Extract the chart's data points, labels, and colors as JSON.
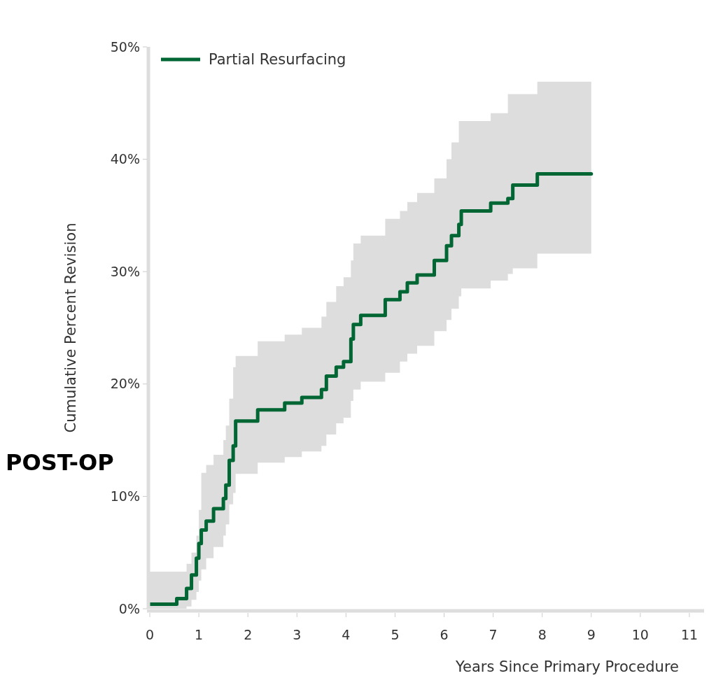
{
  "chart_data": {
    "type": "step",
    "xlabel": "Years Since Primary Procedure",
    "ylabel": "Cumulative Percent Revision",
    "xlim": [
      0,
      11.3
    ],
    "xticks": [
      0,
      1,
      2,
      3,
      4,
      5,
      6,
      7,
      8,
      9,
      10,
      11
    ],
    "ylim": [
      0,
      50
    ],
    "yticks": [
      {
        "value": 0,
        "label": "0%"
      },
      {
        "value": 10,
        "label": "10%"
      },
      {
        "value": 20,
        "label": "20%"
      },
      {
        "value": 30,
        "label": "30%"
      },
      {
        "value": 40,
        "label": "40%"
      },
      {
        "value": 50,
        "label": "50%"
      }
    ],
    "grid": false,
    "legend": "top left",
    "marker": "none",
    "line_style": "solid",
    "annotations": [
      "POST-OP"
    ],
    "series": [
      {
        "name": "Partial Resurfacing",
        "color": "#006633",
        "x": [
          0,
          0.55,
          0.75,
          0.85,
          0.95,
          1.0,
          1.05,
          1.15,
          1.3,
          1.5,
          1.55,
          1.62,
          1.7,
          1.75,
          2.2,
          2.75,
          3.1,
          3.5,
          3.6,
          3.8,
          3.95,
          4.1,
          4.15,
          4.3,
          4.8,
          5.1,
          5.25,
          5.45,
          5.8,
          6.05,
          6.15,
          6.3,
          6.35,
          6.95,
          7.3,
          7.4,
          7.9,
          9.0
        ],
        "values": [
          0.4,
          0.9,
          1.8,
          3,
          4.5,
          5.8,
          7,
          7.8,
          8.9,
          9.8,
          11,
          13.2,
          14.5,
          16.7,
          17.7,
          18.3,
          18.8,
          19.5,
          20.7,
          21.5,
          22,
          24,
          25.3,
          26.1,
          27.5,
          28.2,
          29,
          29.7,
          31,
          32.3,
          33.2,
          34.2,
          35.4,
          36.1,
          36.5,
          37.7,
          38.7,
          38.7
        ],
        "lower": [
          0,
          0,
          0.2,
          0.8,
          1.5,
          2.5,
          3.5,
          4.5,
          5.5,
          6.5,
          7.5,
          9.3,
          10.3,
          12,
          13,
          13.5,
          14,
          14.5,
          15.5,
          16.5,
          17,
          18.5,
          19.5,
          20.2,
          21,
          22,
          22.7,
          23.4,
          24.7,
          25.7,
          26.7,
          27.8,
          28.5,
          29.2,
          29.8,
          30.3,
          31.6,
          31.6
        ],
        "upper": [
          3.3,
          3.3,
          4,
          5,
          6.5,
          8.8,
          12.1,
          12.8,
          13.7,
          15,
          16.3,
          18.7,
          21.5,
          22.5,
          23.8,
          24.4,
          25,
          26,
          27.3,
          28.7,
          29.5,
          31,
          32.5,
          33.2,
          34.7,
          35.4,
          36.2,
          37,
          38.3,
          40,
          41.5,
          43.4,
          43.4,
          44.1,
          45.8,
          45.8,
          46.9,
          46.9
        ]
      }
    ]
  }
}
